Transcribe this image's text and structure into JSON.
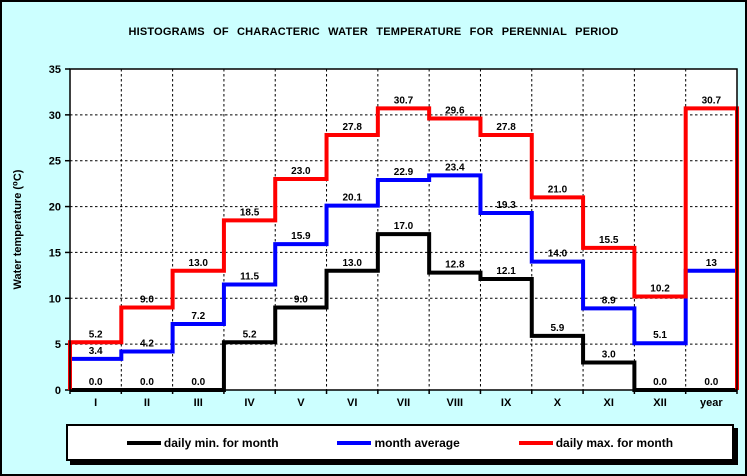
{
  "background_color": "#CCFFFF",
  "plot_background_color": "#FFFFFF",
  "chart_data": {
    "type": "line",
    "subtype": "step-histogram",
    "title": "HISTOGRAMS OF CHARACTERIC WATER TEMPERATURE FOR PERENNIAL PERIOD",
    "categories": [
      "I",
      "II",
      "III",
      "IV",
      "V",
      "VI",
      "VII",
      "VIII",
      "IX",
      "X",
      "XI",
      "XII",
      "year"
    ],
    "series": [
      {
        "name": "daily min. for month",
        "color": "#000000",
        "values": [
          0.0,
          0.0,
          0.0,
          5.2,
          9.0,
          13.0,
          17.0,
          12.8,
          12.1,
          5.9,
          3.0,
          0.0,
          0.0
        ],
        "labels": [
          "0.0",
          "0.0",
          "0.0",
          "5.2",
          "9.0",
          "13.0",
          "17.0",
          "12.8",
          "12.1",
          "5.9",
          "3.0",
          "0.0",
          "0.0"
        ],
        "end_drop_to_zero": false
      },
      {
        "name": "month average",
        "color": "#0000FF",
        "values": [
          3.4,
          4.2,
          7.2,
          11.5,
          15.9,
          20.1,
          22.9,
          23.4,
          19.3,
          14.0,
          8.9,
          5.1,
          13
        ],
        "labels": [
          "3.4",
          "4.2",
          "7.2",
          "11.5",
          "15.9",
          "20.1",
          "22.9",
          "23.4",
          "19.3",
          "14.0",
          "8.9",
          "5.1",
          "13"
        ],
        "end_drop_to_zero": false
      },
      {
        "name": "daily max. for month",
        "color": "#FF0000",
        "values": [
          5.2,
          9.0,
          13.0,
          18.5,
          23.0,
          27.8,
          30.7,
          29.6,
          27.8,
          21.0,
          15.5,
          10.2,
          30.7
        ],
        "labels": [
          "5.2",
          "9.0",
          "13.0",
          "18.5",
          "23.0",
          "27.8",
          "30.7",
          "29.6",
          "27.8",
          "21.0",
          "15.5",
          "10.2",
          "30.7"
        ],
        "end_drop_to_zero": true
      }
    ],
    "xlabel": "",
    "ylabel": "Water temperature (⁰C)",
    "ylim": [
      0,
      35
    ],
    "yticks": [
      0,
      5,
      10,
      15,
      20,
      25,
      30,
      35
    ],
    "grid": "dashed",
    "grid_color": "#000000",
    "data_label_color": "#000000",
    "legend_position": "bottom"
  }
}
